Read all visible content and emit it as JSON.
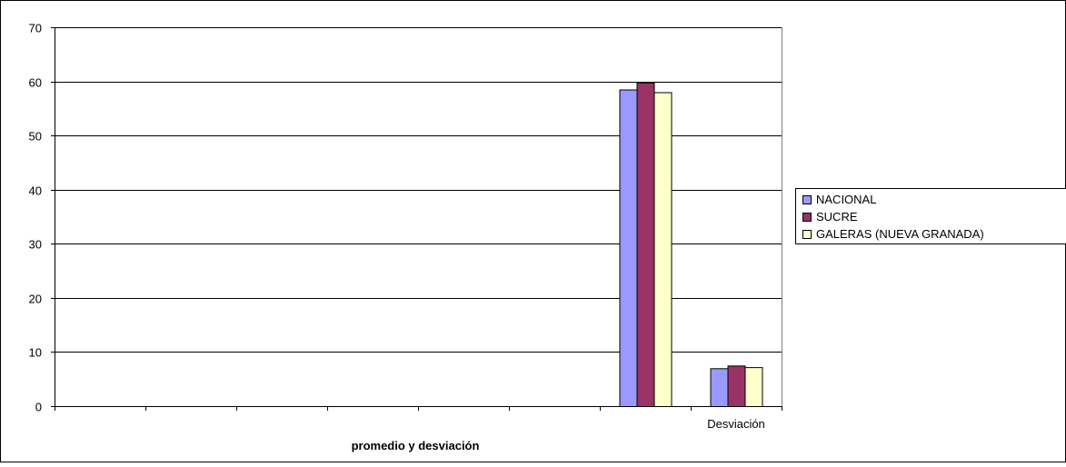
{
  "chart_data": {
    "type": "bar",
    "title": "",
    "xlabel": "promedio y desviación",
    "ylabel": "",
    "ylim": [
      0,
      70
    ],
    "yticks": [
      0,
      10,
      20,
      30,
      40,
      50,
      60,
      70
    ],
    "grid": true,
    "legend_position": "right",
    "categories": [
      "",
      "",
      "",
      "",
      "",
      "",
      "",
      "Desviación"
    ],
    "series": [
      {
        "name": "NACIONAL",
        "color": "#9999ff",
        "values": [
          null,
          null,
          null,
          null,
          null,
          null,
          58.5,
          7.0
        ]
      },
      {
        "name": "SUCRE",
        "color": "#993366",
        "values": [
          null,
          null,
          null,
          null,
          null,
          null,
          59.8,
          7.5
        ]
      },
      {
        "name": "GALERAS (NUEVA GRANADA)",
        "color": "#ffffcc",
        "values": [
          null,
          null,
          null,
          null,
          null,
          null,
          58.0,
          7.2
        ]
      }
    ]
  }
}
